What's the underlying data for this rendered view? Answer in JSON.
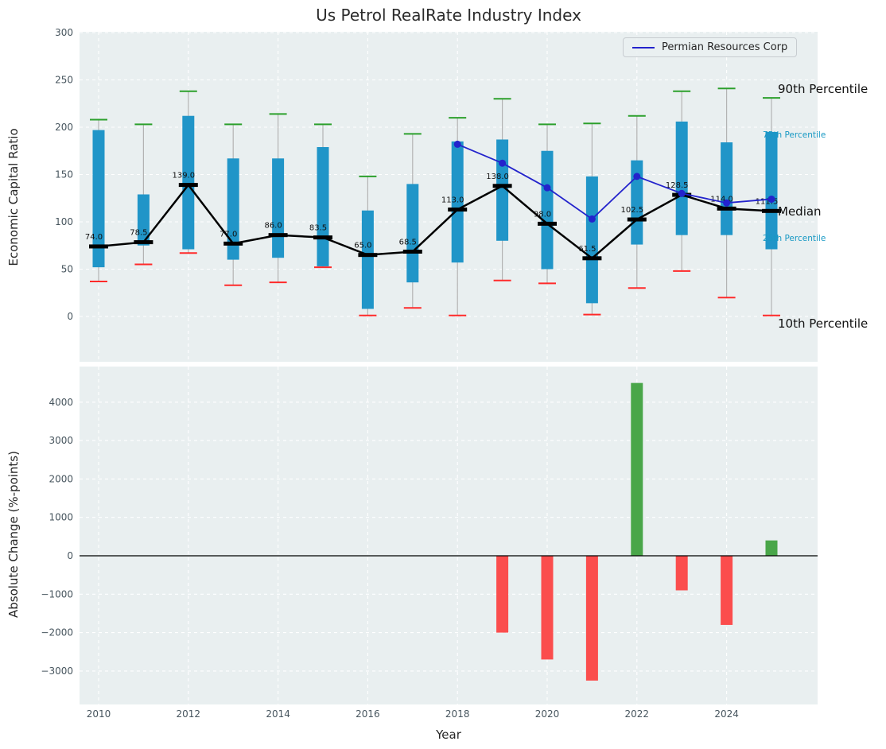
{
  "title": "Us Petrol RealRate Industry Index",
  "top_chart": {
    "ylabel": "Economic Capital Ratio",
    "yticks": [
      0,
      50,
      100,
      150,
      200,
      250,
      300
    ],
    "legend": {
      "label": "Permian Resources Corp"
    },
    "annotations": {
      "p90": "90th Percentile",
      "p75": "75th Percentile",
      "median": "Median",
      "p25": "25th Percentile",
      "p10": "10th Percentile"
    }
  },
  "bottom_chart": {
    "xlabel": "Year",
    "ylabel": "Absolute Change (%-points)",
    "yticks": [
      -3000,
      -2000,
      -1000,
      0,
      1000,
      2000,
      3000,
      4000
    ],
    "xticks": [
      2010,
      2012,
      2014,
      2016,
      2018,
      2020,
      2022,
      2024
    ]
  },
  "chart_data": [
    {
      "type": "boxplot+line",
      "title": "Us Petrol RealRate Industry Index",
      "xlabel": "Year",
      "ylabel": "Economic Capital Ratio",
      "ylim": [
        -48,
        305
      ],
      "x": [
        2010,
        2011,
        2012,
        2013,
        2014,
        2015,
        2016,
        2017,
        2018,
        2019,
        2020,
        2021,
        2022,
        2023,
        2024,
        2025
      ],
      "series": [
        {
          "name": "Median",
          "values": [
            74.0,
            78.5,
            139.0,
            77.0,
            86.0,
            83.5,
            65.0,
            68.5,
            113.0,
            138.0,
            98.0,
            61.5,
            102.5,
            128.5,
            114.0,
            111.5
          ]
        },
        {
          "name": "Permian Resources Corp",
          "x": [
            2018,
            2019,
            2020,
            2021,
            2022,
            2023,
            2024,
            2025
          ],
          "values": [
            182,
            162,
            136,
            103,
            148,
            130,
            120,
            124
          ]
        }
      ],
      "box": {
        "p10": [
          37,
          55,
          67,
          33,
          36,
          52,
          1,
          9,
          1,
          38,
          35,
          2,
          30,
          48,
          20,
          1
        ],
        "p25": [
          52,
          75,
          71,
          60,
          62,
          53,
          8,
          36,
          57,
          80,
          50,
          14,
          76,
          86,
          86,
          71
        ],
        "p75": [
          197,
          129,
          212,
          167,
          167,
          179,
          112,
          140,
          185,
          187,
          175,
          148,
          165,
          206,
          184,
          195
        ],
        "p90": [
          208,
          203,
          238,
          203,
          214,
          203,
          148,
          193,
          210,
          230,
          203,
          204,
          212,
          238,
          241,
          231
        ]
      },
      "legend_position": "upper right",
      "grid": true
    },
    {
      "type": "bar",
      "xlabel": "Year",
      "ylabel": "Absolute Change (%-points)",
      "ylim": [
        -3900,
        4950
      ],
      "x": [
        2010,
        2011,
        2012,
        2013,
        2014,
        2015,
        2016,
        2017,
        2018,
        2019,
        2020,
        2021,
        2022,
        2023,
        2024,
        2025
      ],
      "values": [
        0,
        0,
        0,
        0,
        0,
        0,
        0,
        0,
        0,
        -2000,
        -2700,
        -3250,
        4500,
        -900,
        -1800,
        400
      ],
      "grid": true
    }
  ],
  "colors": {
    "plot_bg": "#e9eff0",
    "grid": "#ffffff",
    "box": "#2095c8",
    "whisker": "#b3b3b3",
    "cap_high": "#2ca02c",
    "cap_low": "#ff2a2a",
    "median": "#000000",
    "company": "#2323cc",
    "bar_pos": "#49a649",
    "bar_neg": "#fb4d4d",
    "tick": "#47555e",
    "label": "#262626",
    "annotation_small": "#1899c4"
  }
}
